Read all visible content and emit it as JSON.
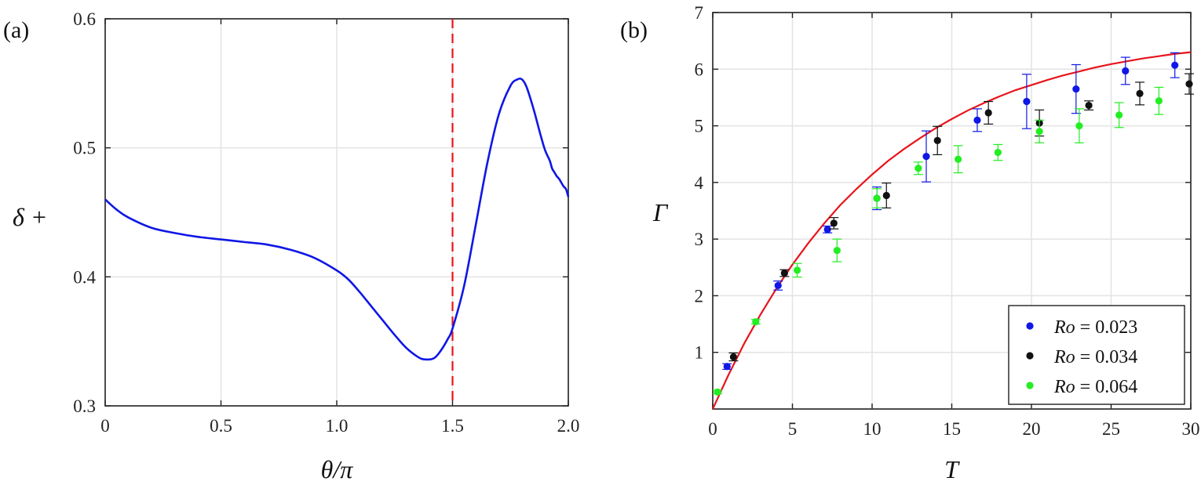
{
  "chart_data": [
    {
      "panel_label": "(a)",
      "type": "line",
      "xlabel": "θ/π",
      "ylabel": "δ +",
      "xlim": [
        0,
        2.0
      ],
      "ylim": [
        0.3,
        0.6
      ],
      "xticks": [
        "0",
        "0.5",
        "1.0",
        "1.5",
        "2.0"
      ],
      "yticks": [
        "0.3",
        "0.4",
        "0.5",
        "0.6"
      ],
      "grid": true,
      "reference_line": {
        "x": 1.5,
        "style": "dashed",
        "color": "#e8141b"
      },
      "series": [
        {
          "color": "#0f17e6",
          "x": [
            0,
            0.05,
            0.1,
            0.2,
            0.3,
            0.4,
            0.5,
            0.6,
            0.7,
            0.8,
            0.9,
            1.0,
            1.05,
            1.1,
            1.15,
            1.2,
            1.25,
            1.3,
            1.35,
            1.38,
            1.42,
            1.45,
            1.48,
            1.5,
            1.55,
            1.6,
            1.65,
            1.7,
            1.75,
            1.78,
            1.8,
            1.82,
            1.85,
            1.88,
            1.9,
            1.92,
            1.93,
            1.94,
            1.95,
            1.96,
            1.97,
            1.98,
            1.99,
            2.0
          ],
          "y": [
            0.46,
            0.452,
            0.446,
            0.438,
            0.434,
            0.431,
            0.429,
            0.427,
            0.425,
            0.421,
            0.415,
            0.405,
            0.398,
            0.388,
            0.377,
            0.366,
            0.355,
            0.345,
            0.338,
            0.336,
            0.337,
            0.343,
            0.352,
            0.36,
            0.393,
            0.44,
            0.488,
            0.526,
            0.548,
            0.553,
            0.553,
            0.547,
            0.53,
            0.51,
            0.498,
            0.49,
            0.484,
            0.481,
            0.478,
            0.476,
            0.473,
            0.47,
            0.468,
            0.462
          ]
        }
      ]
    },
    {
      "panel_label": "(b)",
      "type": "scatter",
      "xlabel": "T",
      "ylabel": "Γ",
      "xlim": [
        0,
        30
      ],
      "ylim": [
        0,
        7
      ],
      "xticks": [
        "0",
        "5",
        "10",
        "15",
        "20",
        "25",
        "30"
      ],
      "yticks": [
        "1",
        "2",
        "3",
        "4",
        "5",
        "6",
        "7"
      ],
      "grid": true,
      "legend_position": "bottom-right",
      "fit_curve": {
        "color": "#e8141b",
        "x": [
          0,
          1,
          2,
          3,
          4,
          5,
          6,
          7,
          8,
          9,
          10,
          11,
          12,
          13,
          14,
          15,
          16,
          17,
          18,
          19,
          20,
          21,
          22,
          23,
          24,
          25,
          26,
          27,
          28,
          29,
          30
        ],
        "y": [
          0,
          0.61,
          1.17,
          1.67,
          2.13,
          2.55,
          2.93,
          3.28,
          3.6,
          3.88,
          4.14,
          4.38,
          4.59,
          4.78,
          4.96,
          5.12,
          5.27,
          5.4,
          5.52,
          5.63,
          5.72,
          5.81,
          5.89,
          5.96,
          6.03,
          6.09,
          6.14,
          6.19,
          6.23,
          6.27,
          6.3
        ]
      },
      "series": [
        {
          "name_prefix": "Ro",
          "name_value": "= 0.023",
          "color": "#0f17e6",
          "x": [
            0.9,
            4.1,
            7.2,
            10.3,
            13.4,
            16.6,
            19.7,
            22.8,
            25.9,
            29.0
          ],
          "y": [
            0.75,
            2.18,
            3.17,
            3.72,
            4.46,
            5.1,
            5.43,
            5.65,
            5.97,
            6.07
          ],
          "err": [
            0.05,
            0.08,
            0.06,
            0.2,
            0.45,
            0.2,
            0.48,
            0.43,
            0.24,
            0.22
          ]
        },
        {
          "name_prefix": "Ro",
          "name_value": "= 0.034",
          "color": "#111111",
          "x": [
            1.3,
            4.5,
            7.6,
            10.9,
            14.1,
            17.3,
            20.5,
            23.6,
            26.8,
            29.9
          ],
          "y": [
            0.92,
            2.4,
            3.28,
            3.77,
            4.74,
            5.23,
            5.05,
            5.36,
            5.57,
            5.74
          ],
          "err": [
            0.07,
            0.06,
            0.1,
            0.22,
            0.25,
            0.2,
            0.23,
            0.08,
            0.2,
            0.18
          ]
        },
        {
          "name_prefix": "Ro",
          "name_value": "= 0.064",
          "color": "#22ee22",
          "x": [
            0.3,
            2.7,
            5.3,
            7.8,
            10.3,
            12.9,
            15.4,
            17.9,
            20.5,
            23.0,
            25.5,
            28.0
          ],
          "y": [
            0.3,
            1.54,
            2.45,
            2.8,
            3.72,
            4.25,
            4.41,
            4.53,
            4.9,
            5.0,
            5.19,
            5.44
          ],
          "err": [
            0.03,
            0.04,
            0.12,
            0.2,
            0.17,
            0.11,
            0.24,
            0.14,
            0.2,
            0.3,
            0.22,
            0.24
          ]
        }
      ]
    }
  ]
}
